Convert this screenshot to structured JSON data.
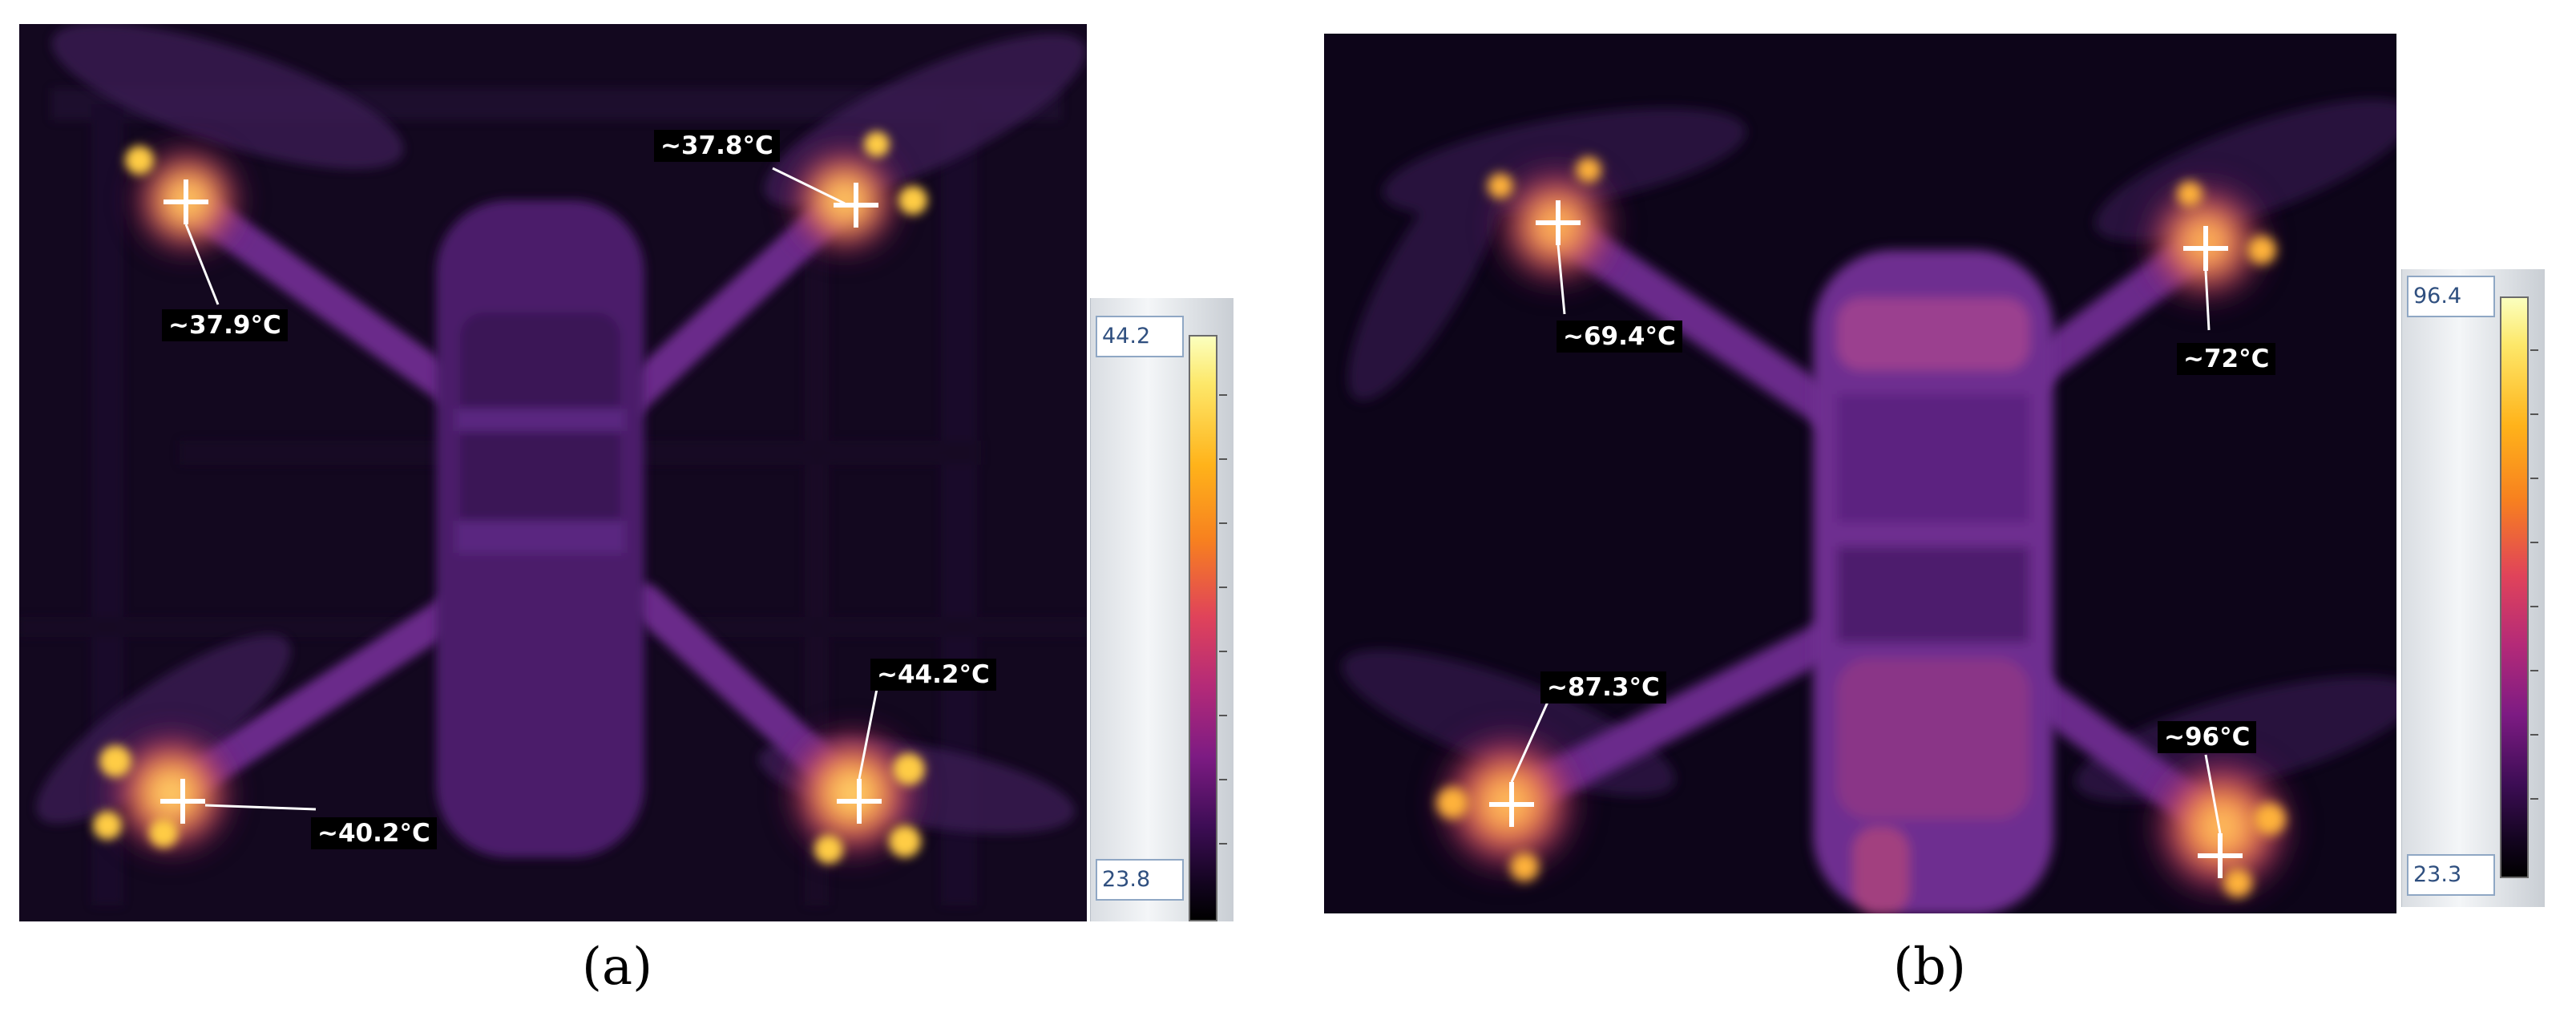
{
  "panels": [
    {
      "caption": "(a)",
      "annotations": [
        "~37.9°C",
        "~37.8°C",
        "~40.2°C",
        "~44.2°C"
      ],
      "scale": {
        "max": "44.2",
        "min": "23.8"
      }
    },
    {
      "caption": "(b)",
      "annotations": [
        "~69.4°C",
        "~72°C",
        "~87.3°C",
        "~96°C"
      ],
      "scale": {
        "max": "96.4",
        "min": "23.3"
      }
    }
  ],
  "colors": {
    "background": "#13081f",
    "hot": "#fde86a",
    "warm": "#e0435a"
  }
}
